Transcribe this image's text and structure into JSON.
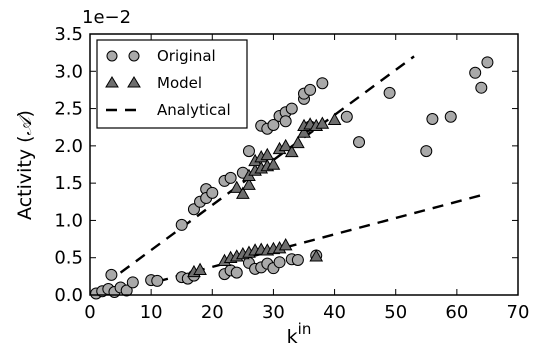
{
  "chart_data": {
    "type": "scatter",
    "xlabel": "k",
    "xlabel_sup": "in",
    "ylabel_prefix": "Activity (",
    "ylabel_symbol": "𝒜",
    "ylabel_suffix": ")",
    "y_multiplier_label": "1e−2",
    "xlim": [
      0,
      70
    ],
    "ylim": [
      0,
      3.5
    ],
    "x_ticks": [
      0,
      10,
      20,
      30,
      40,
      50,
      60,
      70
    ],
    "y_ticks": [
      0.0,
      0.5,
      1.0,
      1.5,
      2.0,
      2.5,
      3.0,
      3.5
    ],
    "y_tick_labels": [
      "0.0",
      "0.5",
      "1.0",
      "1.5",
      "2.0",
      "2.5",
      "3.0",
      "3.5"
    ],
    "grid": false,
    "legend_position": "top-left",
    "series": [
      {
        "name": "Original",
        "marker": "circle",
        "color": "#a9a9a9",
        "points": [
          [
            1,
            0.02
          ],
          [
            2,
            0.05
          ],
          [
            3,
            0.08
          ],
          [
            3.5,
            0.27
          ],
          [
            4,
            0.04
          ],
          [
            5,
            0.1
          ],
          [
            6,
            0.06
          ],
          [
            7,
            0.17
          ],
          [
            10,
            0.2
          ],
          [
            11,
            0.19
          ],
          [
            15,
            0.94
          ],
          [
            15,
            0.24
          ],
          [
            16,
            0.22
          ],
          [
            17,
            0.26
          ],
          [
            17,
            1.15
          ],
          [
            18,
            1.25
          ],
          [
            19,
            1.42
          ],
          [
            19,
            1.3
          ],
          [
            20,
            1.37
          ],
          [
            22,
            1.53
          ],
          [
            22,
            0.28
          ],
          [
            23,
            1.57
          ],
          [
            23,
            0.33
          ],
          [
            24,
            0.3
          ],
          [
            25,
            1.64
          ],
          [
            26,
            1.93
          ],
          [
            26,
            0.43
          ],
          [
            27,
            0.35
          ],
          [
            28,
            0.37
          ],
          [
            28,
            2.27
          ],
          [
            29,
            2.23
          ],
          [
            29,
            0.42
          ],
          [
            30,
            2.28
          ],
          [
            30,
            0.36
          ],
          [
            31,
            2.4
          ],
          [
            31,
            0.44
          ],
          [
            32,
            2.45
          ],
          [
            32,
            2.33
          ],
          [
            33,
            2.5
          ],
          [
            33,
            0.48
          ],
          [
            34,
            0.47
          ],
          [
            35,
            2.63
          ],
          [
            35,
            2.7
          ],
          [
            36,
            2.75
          ],
          [
            36,
            2.26
          ],
          [
            37,
            0.53
          ],
          [
            38,
            2.84
          ],
          [
            42,
            2.39
          ],
          [
            44,
            2.05
          ],
          [
            49,
            2.71
          ],
          [
            55,
            1.93
          ],
          [
            56,
            2.36
          ],
          [
            59,
            2.39
          ],
          [
            63,
            2.98
          ],
          [
            64,
            2.78
          ],
          [
            65,
            3.12
          ]
        ]
      },
      {
        "name": "Model",
        "marker": "triangle",
        "color": "#6e6e6e",
        "points": [
          [
            17,
            0.31
          ],
          [
            18,
            0.34
          ],
          [
            22,
            0.46
          ],
          [
            23,
            0.5
          ],
          [
            24,
            0.52
          ],
          [
            25,
            0.55
          ],
          [
            26,
            0.57
          ],
          [
            27,
            0.6
          ],
          [
            28,
            0.61
          ],
          [
            29,
            0.6
          ],
          [
            30,
            0.62
          ],
          [
            31,
            0.63
          ],
          [
            32,
            0.67
          ],
          [
            37,
            0.52
          ],
          [
            24,
            1.44
          ],
          [
            25,
            1.36
          ],
          [
            26,
            1.48
          ],
          [
            26,
            1.6
          ],
          [
            27,
            1.67
          ],
          [
            27,
            1.8
          ],
          [
            28,
            1.7
          ],
          [
            28,
            1.85
          ],
          [
            29,
            1.73
          ],
          [
            29,
            1.88
          ],
          [
            30,
            1.75
          ],
          [
            31,
            1.96
          ],
          [
            32,
            2.0
          ],
          [
            33,
            1.92
          ],
          [
            34,
            2.04
          ],
          [
            35,
            2.18
          ],
          [
            35,
            2.27
          ],
          [
            36,
            2.29
          ],
          [
            37,
            2.27
          ],
          [
            38,
            2.3
          ],
          [
            40,
            2.35
          ]
        ]
      },
      {
        "name": "Analytical",
        "marker": "dashed-line",
        "color": "#000000",
        "lines": [
          [
            [
              5,
              0.3
            ],
            [
              53,
              3.2
            ]
          ],
          [
            [
              11,
              0.18
            ],
            [
              65,
              1.36
            ]
          ]
        ]
      }
    ]
  }
}
